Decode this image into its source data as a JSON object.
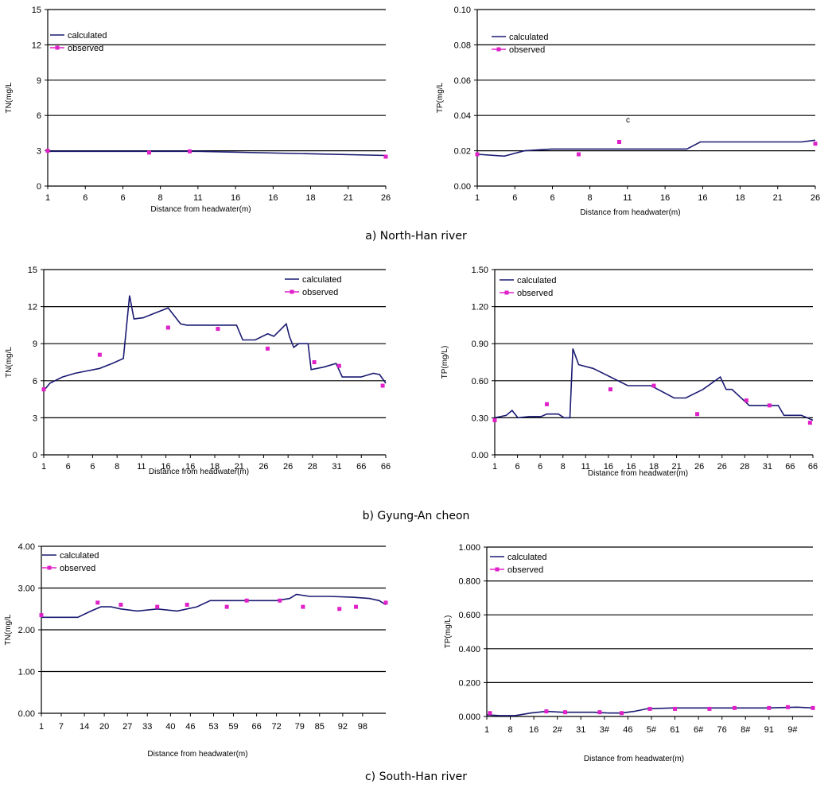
{
  "captions": {
    "a": "a) North-Han river",
    "b": "b) Gyung-An cheon",
    "c": "c) South-Han river"
  },
  "colors": {
    "calculated": "#1a1a72",
    "observed": "#e020c8"
  },
  "chart_data": [
    {
      "type": "line",
      "ylabel": "TN(mg/L",
      "xlabel": "Distance from headwater(m)",
      "ylim": [
        0,
        15
      ],
      "yticks": [
        "0",
        "3",
        "6",
        "9",
        "12",
        "15"
      ],
      "yticks_plain": [
        0,
        3,
        6,
        9,
        12,
        15
      ],
      "xlim": [
        1,
        26
      ],
      "xticks": [
        "1",
        "6",
        "6",
        "8",
        "11",
        "16",
        "16",
        "18",
        "21",
        "26"
      ],
      "xticks_pos": [
        1,
        3.78,
        6.56,
        9.33,
        12.11,
        14.89,
        17.67,
        20.44,
        23.22,
        26
      ],
      "grid": true,
      "legend_loc": "top-left",
      "series": [
        {
          "name": "calculated",
          "kind": "line",
          "x": [
            1,
            12,
            26
          ],
          "y": [
            2.95,
            2.95,
            2.6
          ]
        },
        {
          "name": "observed",
          "kind": "marker",
          "x": [
            1,
            8.5,
            11.5,
            26
          ],
          "y": [
            3.0,
            2.85,
            2.95,
            2.5
          ]
        }
      ]
    },
    {
      "type": "line",
      "ylabel": "TP(mg/L",
      "xlabel": "Distance from headwater(m)",
      "ylim": [
        0,
        0.1
      ],
      "yticks": [
        "0.00",
        "0.02",
        "0.04",
        "0.06",
        "0.08",
        "0.10"
      ],
      "yticks_plain": [
        0,
        0.02,
        0.04,
        0.06,
        0.08,
        0.1
      ],
      "xlim": [
        1,
        26
      ],
      "xticks": [
        "1",
        "6",
        "6",
        "8",
        "11",
        "16",
        "16",
        "18",
        "21",
        "26"
      ],
      "xticks_pos": [
        1,
        3.78,
        6.56,
        9.33,
        12.11,
        14.89,
        17.67,
        20.44,
        23.22,
        26
      ],
      "grid": true,
      "legend_loc": "top-left",
      "annotation": {
        "text": "c",
        "x": 12,
        "y": 0.036
      },
      "series": [
        {
          "name": "calculated",
          "kind": "line",
          "x": [
            1,
            3,
            4.5,
            6.5,
            16.5,
            17.5,
            25,
            26
          ],
          "y": [
            0.018,
            0.017,
            0.02,
            0.021,
            0.021,
            0.025,
            0.025,
            0.026
          ]
        },
        {
          "name": "observed",
          "kind": "marker",
          "x": [
            1,
            8.5,
            11.5,
            26
          ],
          "y": [
            0.018,
            0.018,
            0.025,
            0.024
          ]
        }
      ]
    },
    {
      "type": "line",
      "ylabel": "TN(mg/L",
      "xlabel": "Distance from headwater(m)",
      "ylim": [
        0,
        15
      ],
      "yticks": [
        "0",
        "3",
        "6",
        "9",
        "12",
        "15"
      ],
      "yticks_plain": [
        0,
        3,
        6,
        9,
        12,
        15
      ],
      "xlim": [
        1,
        56
      ],
      "xticks": [
        "1",
        "6",
        "6",
        "8",
        "11",
        "16",
        "16",
        "18",
        "21",
        "26",
        "26",
        "28",
        "31",
        "66",
        "66"
      ],
      "xticks_pos": [
        1,
        4.93,
        8.86,
        12.79,
        16.71,
        20.64,
        24.57,
        28.5,
        32.43,
        36.36,
        40.29,
        44.21,
        48.14,
        52.07,
        56
      ],
      "grid": true,
      "legend_loc": "top-right",
      "series": [
        {
          "name": "calculated",
          "kind": "line",
          "x": [
            1,
            2,
            4,
            6,
            8,
            10,
            12,
            13.8,
            14.8,
            15.5,
            17,
            19,
            21,
            23,
            24,
            28,
            32,
            33,
            35,
            37,
            38,
            40,
            40.5,
            41.2,
            42,
            42.5,
            43.5,
            44,
            46,
            48,
            49,
            52,
            54,
            55,
            56
          ],
          "y": [
            5.2,
            5.8,
            6.3,
            6.6,
            6.8,
            7.0,
            7.4,
            7.8,
            12.9,
            11.0,
            11.1,
            11.5,
            11.9,
            10.6,
            10.5,
            10.5,
            10.5,
            9.3,
            9.3,
            9.8,
            9.6,
            10.6,
            9.6,
            8.7,
            9.0,
            9.0,
            9.0,
            6.9,
            7.1,
            7.4,
            6.3,
            6.3,
            6.6,
            6.5,
            5.8
          ]
        },
        {
          "name": "observed",
          "kind": "marker",
          "x": [
            1,
            10,
            21,
            29,
            37,
            44.5,
            48.5,
            55.5
          ],
          "y": [
            5.3,
            8.1,
            10.3,
            10.2,
            8.6,
            7.5,
            7.2,
            5.6
          ]
        }
      ]
    },
    {
      "type": "line",
      "ylabel": "TP(mg/L)",
      "xlabel": "Distance from headwater(m)",
      "ylim": [
        0,
        1.5
      ],
      "yticks": [
        "0.00",
        "0.30",
        "0.60",
        "0.90",
        "1.20",
        "1.50"
      ],
      "yticks_plain": [
        0,
        0.3,
        0.6,
        0.9,
        1.2,
        1.5
      ],
      "xlim": [
        1,
        56
      ],
      "xticks": [
        "1",
        "6",
        "6",
        "8",
        "11",
        "16",
        "16",
        "18",
        "21",
        "26",
        "26",
        "28",
        "31",
        "66",
        "66"
      ],
      "xticks_pos": [
        1,
        4.93,
        8.86,
        12.79,
        16.71,
        20.64,
        24.57,
        28.5,
        32.43,
        36.36,
        40.29,
        44.21,
        48.14,
        52.07,
        56
      ],
      "grid": true,
      "legend_loc": "top-left",
      "series": [
        {
          "name": "calculated",
          "kind": "line",
          "x": [
            1,
            3,
            4,
            5,
            7,
            9,
            10,
            12,
            13,
            14,
            14.5,
            15.5,
            18,
            21,
            24,
            28,
            32,
            34,
            37,
            40,
            41,
            42,
            45,
            46,
            47,
            50,
            51,
            54,
            56
          ],
          "y": [
            0.3,
            0.32,
            0.36,
            0.3,
            0.31,
            0.31,
            0.33,
            0.33,
            0.3,
            0.3,
            0.86,
            0.73,
            0.7,
            0.63,
            0.56,
            0.56,
            0.46,
            0.46,
            0.53,
            0.63,
            0.53,
            0.53,
            0.4,
            0.4,
            0.4,
            0.4,
            0.32,
            0.32,
            0.28
          ]
        },
        {
          "name": "observed",
          "kind": "marker",
          "x": [
            1,
            10,
            21,
            28.5,
            36,
            44.5,
            48.5,
            55.5
          ],
          "y": [
            0.28,
            0.41,
            0.53,
            0.56,
            0.33,
            0.44,
            0.4,
            0.26
          ]
        }
      ]
    },
    {
      "type": "line",
      "ylabel": "TN(mg/L",
      "xlabel": "Distance from headwater(m)",
      "ylim": [
        0,
        4
      ],
      "yticks": [
        "0.00",
        "1.00",
        "2.00",
        "3.00",
        "4.00"
      ],
      "yticks_plain": [
        0,
        1,
        2,
        3,
        4
      ],
      "xlim": [
        1,
        105
      ],
      "xticks": [
        "1",
        "7",
        "14",
        "20",
        "27",
        "33",
        "40",
        "46",
        "53",
        "59",
        "66",
        "72",
        "79",
        "85",
        "92",
        "98"
      ],
      "xticks_pos": [
        1,
        7,
        14,
        20,
        27,
        33,
        40,
        46,
        53,
        59,
        66,
        72,
        79,
        85,
        92,
        98
      ],
      "grid": true,
      "legend_loc": "top-left",
      "series": [
        {
          "name": "calculated",
          "kind": "line",
          "x": [
            1,
            5,
            12,
            16,
            19,
            22,
            25,
            30,
            36,
            42,
            48,
            52,
            62,
            72,
            76,
            78,
            82,
            88,
            95,
            100,
            103,
            105
          ],
          "y": [
            2.3,
            2.3,
            2.3,
            2.45,
            2.55,
            2.55,
            2.5,
            2.45,
            2.5,
            2.45,
            2.55,
            2.7,
            2.7,
            2.7,
            2.75,
            2.85,
            2.8,
            2.8,
            2.78,
            2.75,
            2.7,
            2.6
          ]
        },
        {
          "name": "observed",
          "kind": "marker",
          "x": [
            1,
            18,
            25,
            36,
            45,
            57,
            63,
            73,
            80,
            91,
            96,
            105
          ],
          "y": [
            2.35,
            2.65,
            2.6,
            2.55,
            2.6,
            2.55,
            2.7,
            2.7,
            2.55,
            2.5,
            2.55,
            2.65
          ]
        }
      ]
    },
    {
      "type": "line",
      "ylabel": "TP(mg/L)",
      "xlabel": "Distance from headwater(m)",
      "ylim": [
        0,
        1
      ],
      "yticks": [
        "0.000",
        "0.200",
        "0.400",
        "0.600",
        "0.800",
        "1.000"
      ],
      "yticks_plain": [
        0,
        0.2,
        0.4,
        0.6,
        0.8,
        1
      ],
      "xlim": [
        1,
        105
      ],
      "xticks": [
        "1",
        "8",
        "16",
        "2#",
        "31",
        "3#",
        "46",
        "5#",
        "61",
        "6#",
        "76",
        "8#",
        "91",
        "9#"
      ],
      "xticks_pos": [
        1,
        8.5,
        16,
        23.5,
        31,
        38.5,
        46,
        53.5,
        61,
        68.5,
        76,
        83.5,
        91,
        98.5
      ],
      "grid": true,
      "legend_loc": "top-left",
      "series": [
        {
          "name": "calculated",
          "kind": "line",
          "x": [
            1,
            5,
            10,
            15,
            20,
            25,
            30,
            35,
            40,
            44,
            48,
            52,
            60,
            70,
            80,
            90,
            100,
            105
          ],
          "y": [
            0.01,
            0.005,
            0.005,
            0.02,
            0.03,
            0.025,
            0.025,
            0.025,
            0.02,
            0.02,
            0.03,
            0.045,
            0.05,
            0.05,
            0.05,
            0.05,
            0.055,
            0.05
          ]
        },
        {
          "name": "observed",
          "kind": "marker",
          "x": [
            2,
            20,
            26,
            37,
            44,
            53,
            61,
            72,
            80,
            91,
            97,
            105
          ],
          "y": [
            0.02,
            0.03,
            0.025,
            0.025,
            0.02,
            0.045,
            0.045,
            0.045,
            0.05,
            0.05,
            0.055,
            0.05
          ]
        }
      ]
    }
  ]
}
